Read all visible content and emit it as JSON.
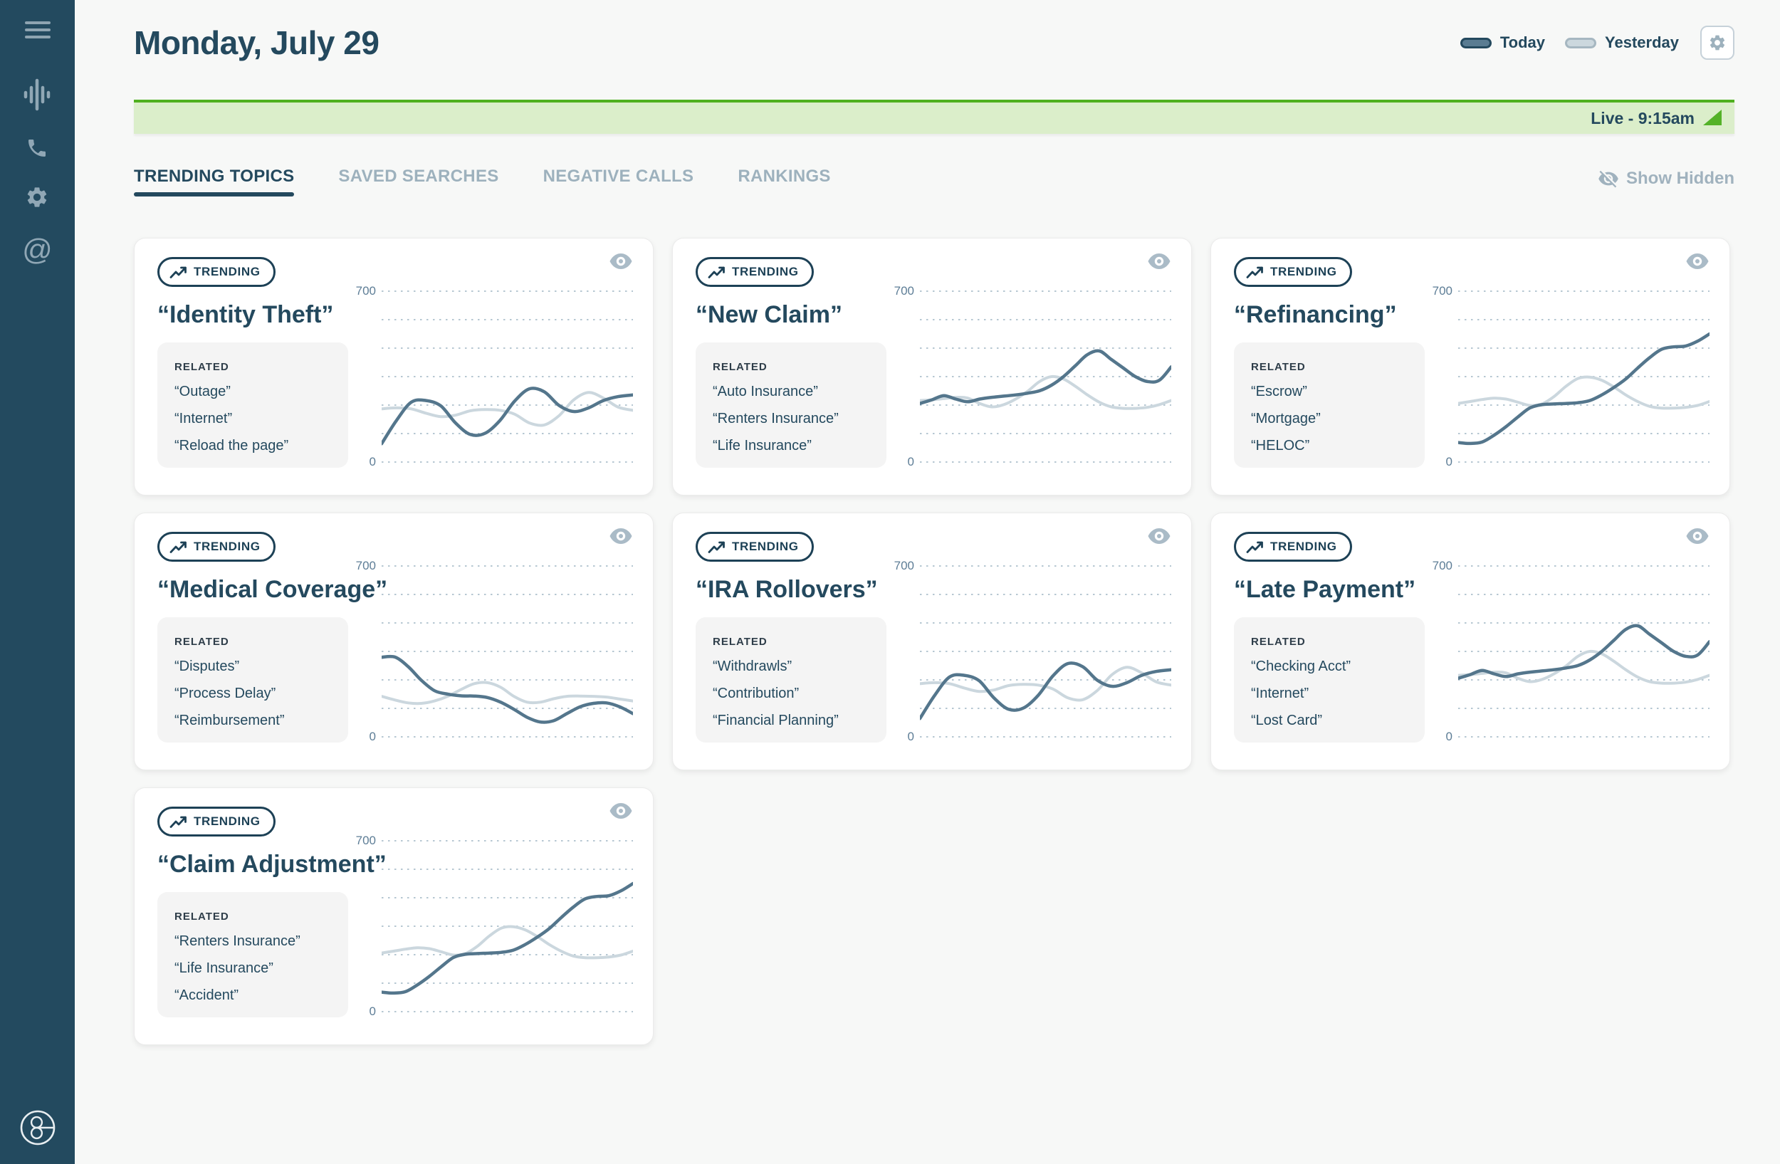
{
  "header": {
    "title": "Monday, July 29",
    "legend": [
      {
        "label": "Today",
        "color": "#5a7c92"
      },
      {
        "label": "Yesterday",
        "color": "#ccd8de"
      }
    ]
  },
  "banner": {
    "label": "Live - 9:15am"
  },
  "tabs": [
    {
      "label": "TRENDING TOPICS",
      "active": true
    },
    {
      "label": "SAVED SEARCHES",
      "active": false
    },
    {
      "label": "NEGATIVE CALLS",
      "active": false
    },
    {
      "label": "RANKINGS",
      "active": false
    }
  ],
  "show_hidden": {
    "label": "Show Hidden"
  },
  "sidebar": {
    "icons": [
      "menu-icon",
      "voice-waveform-icon",
      "phone-icon",
      "gear-icon",
      "at-sign-icon"
    ],
    "logo": "g-logo"
  },
  "colors": {
    "sidebar": "#234a5f",
    "accent_navy": "#24495e",
    "today_line": "#54768c",
    "yesterday_line": "#cbd7de",
    "grid_dots": "#b6c7d2",
    "live_green_border": "#4fb01f",
    "live_green_bg": "#dbeeca",
    "page_bg": "#f7f8f7",
    "muted_text": "#9db1bd"
  },
  "cards": [
    {
      "badge": "TRENDING",
      "title": "“Identity Theft”",
      "related_label": "RELATED",
      "related": [
        "“Outage”",
        "“Internet”",
        "“Reload the page”"
      ]
    },
    {
      "badge": "TRENDING",
      "title": "“New Claim”",
      "related_label": "RELATED",
      "related": [
        "“Auto Insurance”",
        "“Renters Insurance”",
        "“Life Insurance”"
      ]
    },
    {
      "badge": "TRENDING",
      "title": "“Refinancing”",
      "related_label": "RELATED",
      "related": [
        "“Escrow”",
        "“Mortgage”",
        "“HELOC”"
      ]
    },
    {
      "badge": "TRENDING",
      "title": "“Medical Coverage”",
      "related_label": "RELATED",
      "related": [
        "“Disputes”",
        "“Process Delay”",
        "“Reimbursement”"
      ]
    },
    {
      "badge": "TRENDING",
      "title": "“IRA Rollovers”",
      "related_label": "RELATED",
      "related": [
        "“Withdrawls”",
        "“Contribution”",
        "“Financial Planning”"
      ]
    },
    {
      "badge": "TRENDING",
      "title": "“Late Payment”",
      "related_label": "RELATED",
      "related": [
        "“Checking Acct”",
        "“Internet”",
        "“Lost Card”"
      ]
    },
    {
      "badge": "TRENDING",
      "title": "“Claim Adjustment”",
      "related_label": "RELATED",
      "related": [
        "“Renters Insurance”",
        "“Life Insurance”",
        "“Accident”"
      ]
    }
  ],
  "chart_data": {
    "type": "line",
    "ylim": [
      0,
      700
    ],
    "yticks": [
      700,
      0
    ],
    "gridlines": 7,
    "grid_style": "dotted",
    "legend": [
      "Today",
      "Yesterday"
    ],
    "legend_position": "top-right-of-page",
    "series_colors": {
      "today": "#54768c",
      "yesterday": "#cbd7de"
    },
    "charts": [
      {
        "title": "“Identity Theft”",
        "today": [
          75,
          170,
          245,
          252,
          230,
          160,
          113,
          118,
          170,
          250,
          300,
          288,
          232,
          207,
          222,
          252,
          268,
          275
        ],
        "yesterday": [
          218,
          222,
          218,
          200,
          186,
          192,
          210,
          215,
          212,
          196,
          160,
          152,
          190,
          255,
          285,
          262,
          225,
          212
        ]
      },
      {
        "title": "“New Claim”",
        "today": [
          240,
          255,
          272,
          258,
          247,
          258,
          265,
          270,
          275,
          282,
          292,
          315,
          350,
          395,
          440,
          455,
          420,
          385,
          350,
          330,
          335,
          390
        ],
        "yesterday": [
          252,
          255,
          260,
          265,
          262,
          240,
          226,
          235,
          258,
          290,
          330,
          350,
          340,
          310,
          275,
          245,
          226,
          220,
          220,
          224,
          235,
          252
        ]
      },
      {
        "title": "“Refinancing”",
        "today": [
          80,
          76,
          82,
          110,
          145,
          185,
          222,
          235,
          238,
          240,
          243,
          252,
          275,
          305,
          340,
          385,
          428,
          462,
          472,
          475,
          495,
          525
        ],
        "yesterday": [
          240,
          248,
          256,
          262,
          258,
          245,
          232,
          238,
          268,
          310,
          342,
          348,
          335,
          308,
          275,
          248,
          228,
          221,
          221,
          224,
          232,
          248
        ]
      },
      {
        "title": "“Medical Coverage”",
        "today": [
          326,
          327,
          288,
          232,
          189,
          175,
          168,
          167,
          161,
          142,
          113,
          80,
          61,
          66,
          95,
          123,
          137,
          139,
          123,
          95
        ],
        "yesterday": [
          166,
          151,
          139,
          137,
          147,
          166,
          194,
          218,
          222,
          203,
          166,
          142,
          142,
          156,
          166,
          167,
          166,
          163,
          155,
          147
        ]
      },
      {
        "title": "“IRA Rollovers”",
        "today": [
          75,
          170,
          245,
          252,
          230,
          160,
          113,
          118,
          170,
          250,
          300,
          288,
          232,
          207,
          222,
          252,
          268,
          275
        ],
        "yesterday": [
          218,
          222,
          218,
          200,
          186,
          192,
          210,
          215,
          212,
          196,
          160,
          152,
          190,
          255,
          285,
          262,
          225,
          212
        ]
      },
      {
        "title": "“Late Payment”",
        "today": [
          240,
          255,
          272,
          258,
          247,
          258,
          265,
          270,
          275,
          282,
          292,
          315,
          350,
          395,
          440,
          455,
          420,
          385,
          350,
          330,
          335,
          390
        ],
        "yesterday": [
          252,
          255,
          260,
          265,
          262,
          240,
          226,
          235,
          258,
          290,
          330,
          350,
          340,
          310,
          275,
          245,
          226,
          220,
          220,
          224,
          235,
          252
        ]
      },
      {
        "title": "“Claim Adjustment”",
        "today": [
          80,
          76,
          82,
          110,
          145,
          185,
          222,
          235,
          238,
          240,
          243,
          252,
          275,
          305,
          340,
          385,
          428,
          462,
          472,
          475,
          495,
          525
        ],
        "yesterday": [
          240,
          248,
          256,
          262,
          258,
          245,
          232,
          238,
          268,
          310,
          342,
          348,
          335,
          308,
          275,
          248,
          228,
          221,
          221,
          224,
          232,
          248
        ]
      }
    ]
  }
}
